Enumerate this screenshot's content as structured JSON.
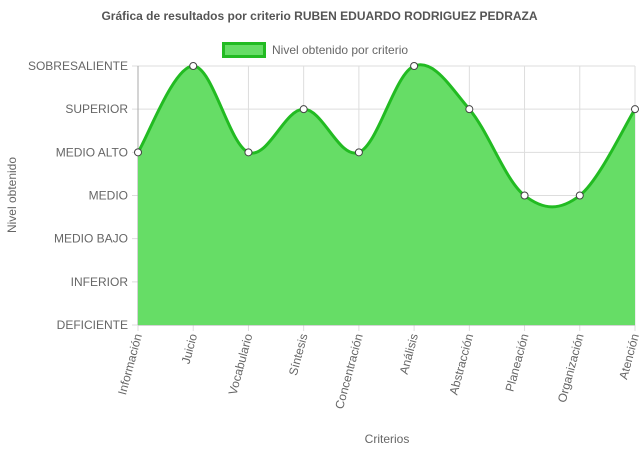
{
  "chart_data": {
    "type": "area",
    "title": "Gráfica de resultados por criterio RUBEN EDUARDO RODRIGUEZ PEDRAZA",
    "xlabel": "Criterios",
    "ylabel": "Nivel obtenido",
    "categories": [
      "Información",
      "Juicio",
      "Vocabulario",
      "Síntesis",
      "Concentración",
      "Análisis",
      "Abstracción",
      "Planeación",
      "Organización",
      "Atención"
    ],
    "y_levels": [
      "DEFICIENTE",
      "INFERIOR",
      "MEDIO BAJO",
      "MEDIO",
      "MEDIO ALTO",
      "SUPERIOR",
      "SOBRESALIENTE"
    ],
    "ylim": [
      0,
      6
    ],
    "series": [
      {
        "name": "Nivel obtenido por criterio",
        "values": [
          4,
          6,
          4,
          5,
          4,
          6,
          5,
          3,
          3,
          5
        ]
      }
    ],
    "grid": true,
    "legend": "top",
    "colors": {
      "fill": "#66dd66",
      "line": "#22bb22",
      "point_fill": "#ffffff",
      "point_stroke": "#444444"
    }
  }
}
